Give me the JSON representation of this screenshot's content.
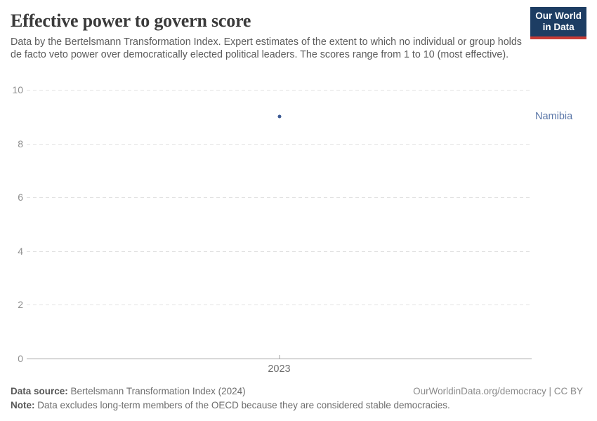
{
  "header": {
    "title": "Effective power to govern score",
    "subtitle": "Data by the Bertelsmann Transformation Index. Expert estimates of the extent to which no individual or group holds de facto veto power over democratically elected political leaders. The scores range from 1 to 10 (most effective).",
    "logo": {
      "line1": "Our World",
      "line2": "in Data",
      "bg_color": "#1d3d63",
      "accent_color": "#c73b36"
    }
  },
  "chart_data": {
    "type": "scatter",
    "title": "Effective power to govern score",
    "series": [
      {
        "name": "Namibia",
        "x": [
          2023
        ],
        "y": [
          9
        ],
        "color": "#3d5a94",
        "label_color": "#5b77a8"
      }
    ],
    "xlabel": "",
    "ylabel": "",
    "xlim": [
      2022,
      2024
    ],
    "ylim": [
      0,
      10
    ],
    "yticks": [
      0,
      2,
      4,
      6,
      8,
      10
    ],
    "xticks": [
      2023
    ],
    "grid": "horizontal-dashed",
    "gridline_color": "#e2e2e2",
    "axis_line_color": "#a3a3a3",
    "legend": "entity-label-right"
  },
  "footer": {
    "source_label": "Data source:",
    "source_text": " Bertelsmann Transformation Index (2024)",
    "attribution": "OurWorldinData.org/democracy | CC BY",
    "note_label": "Note:",
    "note_text": " Data excludes long-term members of the OECD because they are considered stable democracies."
  }
}
